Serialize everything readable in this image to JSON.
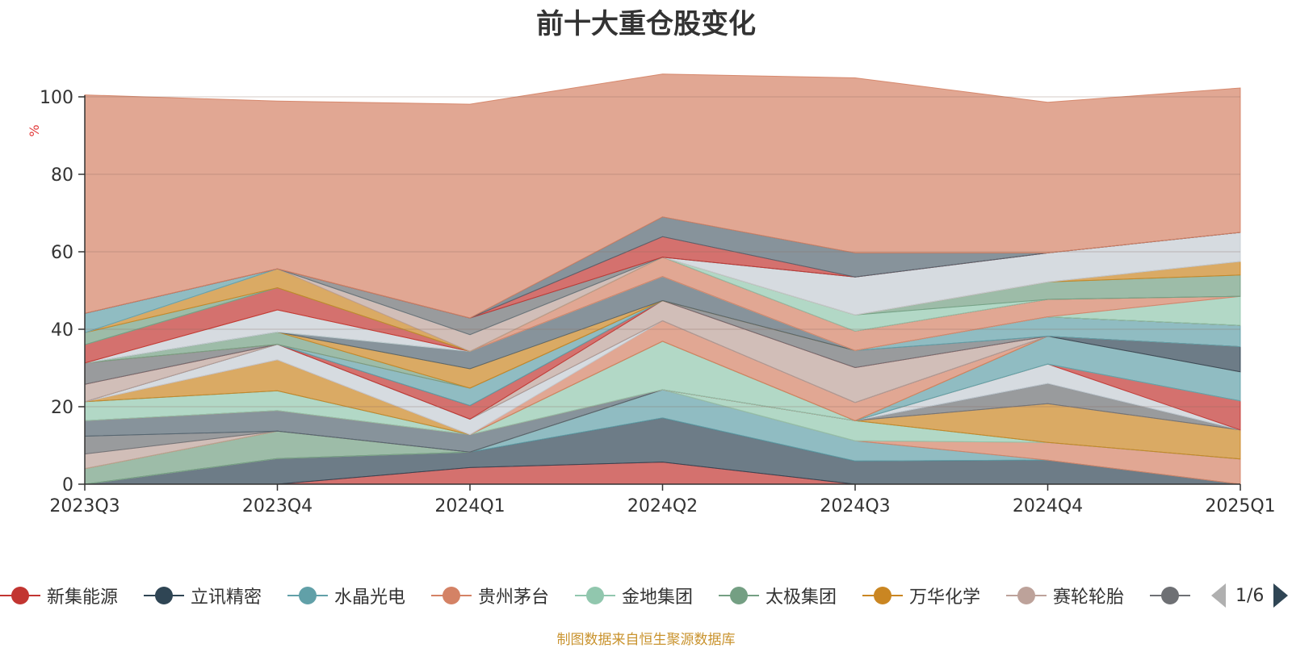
{
  "title": "前十大重仓股变化",
  "footer": "制图数据来自恒生聚源数据库",
  "legend_page": "1/6",
  "chart_data": {
    "type": "area",
    "stacked": true,
    "title": "前十大重仓股变化",
    "ylabel": "%",
    "ylim": [
      0,
      100
    ],
    "yticks": [
      0,
      20,
      40,
      60,
      80,
      100
    ],
    "categories": [
      "2023Q3",
      "2023Q4",
      "2024Q1",
      "2024Q2",
      "2024Q3",
      "2024Q4",
      "2025Q1"
    ],
    "legend_position": "bottom",
    "grid": true,
    "series": [
      {
        "name": "新集能源",
        "color": "#c23531",
        "values": [
          0,
          0,
          4.3,
          5.7,
          0,
          0,
          0
        ]
      },
      {
        "name": "立讯精密",
        "color": "#2f4554",
        "values": [
          0,
          6.6,
          4.0,
          11.4,
          6.0,
          6.2,
          0
        ]
      },
      {
        "name": "水晶光电",
        "color": "#61a0a8",
        "values": [
          0,
          0,
          0,
          7.3,
          5.2,
          0,
          0
        ]
      },
      {
        "name": "贵州茅台",
        "color": "#d48265",
        "values": [
          0,
          0,
          0,
          0,
          0,
          4.6,
          6.5
        ]
      },
      {
        "name": "金地集团",
        "color": "#91c7ae",
        "values": [
          0,
          0,
          0,
          0,
          5.2,
          0,
          0
        ]
      },
      {
        "name": "太极集团",
        "color": "#749f83",
        "values": [
          4.0,
          7.1,
          0,
          0,
          0,
          0,
          0
        ]
      },
      {
        "name": "万华化学",
        "color": "#ca8622",
        "values": [
          0,
          0,
          0,
          0,
          0,
          10.0,
          7.5
        ]
      },
      {
        "name": "赛轮轮胎",
        "color": "#bda29a",
        "values": [
          3.8,
          0,
          0,
          0,
          0,
          0,
          0
        ]
      },
      {
        "name": "",
        "color": "#6e7074",
        "values": [
          4.6,
          0,
          0,
          0,
          0,
          5.2,
          0
        ]
      },
      {
        "name": "",
        "color": "#546570",
        "values": [
          4.0,
          5.3,
          4.5,
          0,
          0,
          0,
          0
        ]
      },
      {
        "name": "",
        "color": "#c4ccd3",
        "values": [
          0,
          0,
          0,
          0,
          0,
          5.0,
          0
        ]
      },
      {
        "name": "",
        "color": "#c23531",
        "values": [
          0,
          0,
          0,
          0,
          0,
          0,
          7.5
        ]
      },
      {
        "name": "",
        "color": "#91c7ae",
        "values": [
          4.9,
          5.1,
          0,
          12.5,
          0,
          0,
          0
        ]
      },
      {
        "name": "",
        "color": "#61a0a8",
        "values": [
          0,
          0,
          0,
          0,
          0,
          7.2,
          7.5
        ]
      },
      {
        "name": "",
        "color": "#ca8622",
        "values": [
          0,
          8.0,
          0,
          0,
          0,
          0,
          0
        ]
      },
      {
        "name": "",
        "color": "#d48265",
        "values": [
          0,
          0,
          0,
          5.3,
          4.7,
          0,
          0
        ]
      },
      {
        "name": "",
        "color": "#c4ccd3",
        "values": [
          0,
          4.0,
          4.0,
          0,
          0,
          0,
          0
        ]
      },
      {
        "name": "",
        "color": "#2f4554",
        "values": [
          0,
          0,
          0,
          0,
          0,
          0,
          6.5
        ]
      },
      {
        "name": "",
        "color": "#bda29a",
        "values": [
          4.5,
          0,
          0,
          5.2,
          9.0,
          0,
          0
        ]
      },
      {
        "name": "",
        "color": "#c23531",
        "values": [
          0,
          0,
          3.5,
          0,
          0,
          0,
          0
        ]
      },
      {
        "name": "",
        "color": "#6e7074",
        "values": [
          5.5,
          0,
          0,
          0,
          4.4,
          0,
          0
        ]
      },
      {
        "name": "",
        "color": "#61a0a8",
        "values": [
          0,
          0,
          4.5,
          0,
          0,
          5.0,
          5.5
        ]
      },
      {
        "name": "",
        "color": "#d48265",
        "values": [
          0,
          0,
          0,
          0,
          0,
          0,
          0
        ]
      },
      {
        "name": "",
        "color": "#749f83",
        "values": [
          0,
          3.2,
          0,
          0,
          0,
          0,
          0
        ]
      },
      {
        "name": "",
        "color": "#ca8622",
        "values": [
          0,
          0,
          5.0,
          0,
          0,
          0,
          0
        ]
      },
      {
        "name": "",
        "color": "#546570",
        "values": [
          0,
          0,
          4.5,
          6.2,
          0,
          0,
          0
        ]
      },
      {
        "name": "",
        "color": "#91c7ae",
        "values": [
          0,
          0,
          0,
          0,
          0,
          0,
          7.5
        ]
      },
      {
        "name": "",
        "color": "#c4ccd3",
        "values": [
          0,
          5.7,
          0,
          0,
          0,
          0,
          0
        ]
      },
      {
        "name": "",
        "color": "#d48265",
        "values": [
          0,
          0,
          0,
          5.0,
          5.0,
          4.5,
          0
        ]
      },
      {
        "name": "",
        "color": "#c23531",
        "values": [
          4.7,
          5.7,
          0,
          0,
          0,
          0,
          0
        ]
      },
      {
        "name": "",
        "color": "#91c7ae",
        "values": [
          0,
          0,
          0,
          0,
          4.2,
          0,
          0
        ]
      },
      {
        "name": "",
        "color": "#749f83",
        "values": [
          3.1,
          0,
          0,
          0,
          0,
          4.5,
          5.5
        ]
      },
      {
        "name": "",
        "color": "#ca8622",
        "values": [
          0,
          4.9,
          0,
          0,
          0,
          0,
          3.5
        ]
      },
      {
        "name": "",
        "color": "#bda29a",
        "values": [
          0,
          0,
          4.3,
          0,
          0,
          0,
          0
        ]
      },
      {
        "name": "",
        "color": "#c4ccd3",
        "values": [
          0,
          0,
          0,
          0,
          9.8,
          7.5,
          7.5
        ]
      },
      {
        "name": "",
        "color": "#61a0a8",
        "values": [
          5.0,
          0,
          0,
          0,
          0,
          0,
          0
        ]
      },
      {
        "name": "",
        "color": "#6e7074",
        "values": [
          0,
          0,
          4.3,
          0,
          0,
          0,
          0
        ]
      },
      {
        "name": "",
        "color": "#c23531",
        "values": [
          0,
          0,
          0,
          5.3,
          0,
          0,
          0
        ]
      },
      {
        "name": "",
        "color": "#546570",
        "values": [
          0,
          0,
          0,
          5.1,
          6.2,
          0,
          0
        ]
      },
      {
        "name": "",
        "color": "#d48265",
        "values": [
          56.4,
          43.3,
          55.2,
          36.9,
          45.2,
          38.9,
          37.3
        ]
      }
    ]
  }
}
